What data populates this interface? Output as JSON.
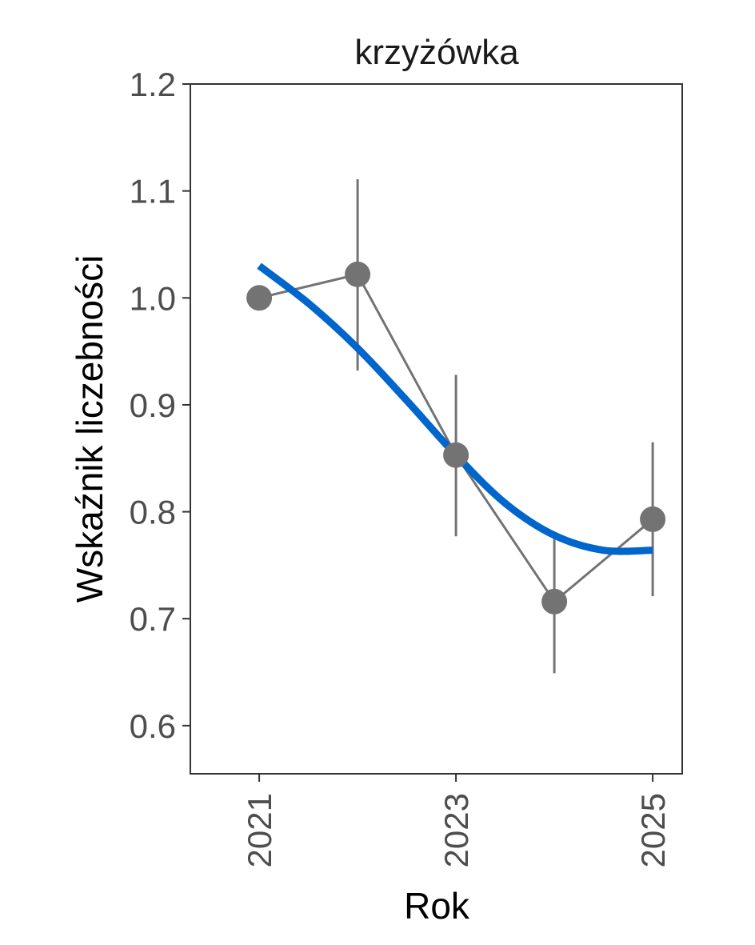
{
  "chart_data": {
    "type": "line",
    "title": "krzyżówka",
    "xlabel": "Rok",
    "ylabel": "Wskaźnik liczebności",
    "x": [
      2021,
      2022,
      2023,
      2024,
      2025
    ],
    "series": [
      {
        "values": [
          1.0,
          1.022,
          0.853,
          0.716,
          0.793
        ],
        "lower": [
          null,
          0.932,
          0.777,
          0.649,
          0.721
        ],
        "upper": [
          null,
          1.111,
          0.928,
          0.78,
          0.865
        ],
        "color": "#737373"
      },
      {
        "type": "smooth",
        "x": [
          2021,
          2021.5,
          2022,
          2022.5,
          2023,
          2023.5,
          2024,
          2024.5,
          2025
        ],
        "values": [
          1.03,
          0.995,
          0.953,
          0.904,
          0.853,
          0.808,
          0.778,
          0.764,
          0.764
        ],
        "color": "#0066cc"
      }
    ],
    "xlim": [
      2020.3,
      2025.3
    ],
    "ylim": [
      0.555,
      1.2
    ],
    "xticks": [
      2021,
      2023,
      2025
    ],
    "yticks": [
      0.6,
      0.7,
      0.8,
      0.9,
      1.0,
      1.1,
      1.2
    ],
    "ytick_labels": [
      "0.6",
      "0.7",
      "0.8",
      "0.9",
      "1.0",
      "1.1",
      "1.2"
    ],
    "xtick_labels": [
      "2021",
      "2023",
      "2025"
    ],
    "grid": false
  }
}
